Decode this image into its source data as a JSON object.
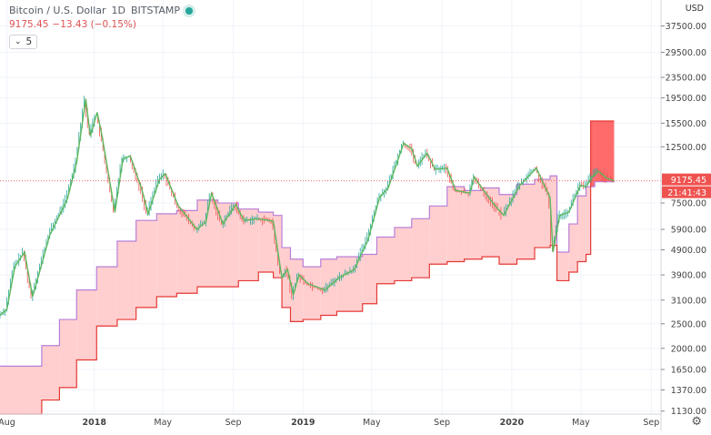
{
  "legend": {
    "title": "Bitcoin / U.S. Dollar",
    "interval": "1D",
    "exchange": "BITSTAMP",
    "last_price": "9175.45",
    "change": "−13.43 (−0.15%)",
    "indicator_label": "5"
  },
  "price_axis": {
    "currency": "USD",
    "ticks": [
      "37500.00",
      "29500.00",
      "23500.00",
      "19500.00",
      "15500.00",
      "12500.00",
      "7500.00",
      "5900.00",
      "4900.00",
      "3900.00",
      "3100.00",
      "2500.00",
      "2000.00",
      "1650.00",
      "1370.00",
      "1130.00"
    ],
    "price_label": "9175.45",
    "countdown_label": "21:41:43"
  },
  "colors": {
    "background": "#ffffff",
    "price_line": "#5cb85c",
    "candle_up": "#26a69a",
    "candle_down": "#ef5350",
    "cloud_bull": "#ffcfcf",
    "cloud_bear": "#ff6b6b",
    "span_a": "#b87fd8",
    "span_b": "#e53935",
    "price_marker": "#ef5350"
  },
  "chart_data": {
    "type": "line",
    "title": "Bitcoin / U.S. Dollar",
    "scale": "log",
    "ylim": [
      1100,
      47500
    ],
    "x_ticks": [
      {
        "t": 1501545600000,
        "label": "Aug",
        "bold": false
      },
      {
        "t": 1514764800000,
        "label": "2018",
        "bold": true
      },
      {
        "t": 1525132800000,
        "label": "May",
        "bold": false
      },
      {
        "t": 1535760000000,
        "label": "Sep",
        "bold": false
      },
      {
        "t": 1546300800000,
        "label": "2019",
        "bold": true
      },
      {
        "t": 1556668800000,
        "label": "May",
        "bold": false
      },
      {
        "t": 1567296000000,
        "label": "Sep",
        "bold": false
      },
      {
        "t": 1577836800000,
        "label": "2020",
        "bold": true
      },
      {
        "t": 1588291200000,
        "label": "May",
        "bold": false
      },
      {
        "t": 1598918400000,
        "label": "Sep",
        "bold": false
      }
    ],
    "series": [
      {
        "name": "price",
        "points": [
          [
            "2017-07-20",
            2700
          ],
          [
            "2017-08-01",
            2850
          ],
          [
            "2017-08-15",
            4200
          ],
          [
            "2017-09-01",
            4800
          ],
          [
            "2017-09-15",
            3200
          ],
          [
            "2017-10-01",
            4300
          ],
          [
            "2017-10-15",
            5600
          ],
          [
            "2017-11-01",
            6700
          ],
          [
            "2017-11-15",
            7800
          ],
          [
            "2017-12-01",
            10800
          ],
          [
            "2017-12-17",
            19300
          ],
          [
            "2017-12-25",
            13800
          ],
          [
            "2018-01-06",
            17100
          ],
          [
            "2018-01-15",
            13600
          ],
          [
            "2018-02-06",
            6900
          ],
          [
            "2018-02-20",
            11200
          ],
          [
            "2018-03-05",
            11500
          ],
          [
            "2018-03-25",
            8500
          ],
          [
            "2018-04-05",
            6800
          ],
          [
            "2018-04-25",
            9300
          ],
          [
            "2018-05-05",
            9800
          ],
          [
            "2018-05-28",
            7300
          ],
          [
            "2018-06-15",
            6500
          ],
          [
            "2018-06-29",
            5900
          ],
          [
            "2018-07-15",
            6300
          ],
          [
            "2018-07-25",
            8200
          ],
          [
            "2018-08-14",
            6200
          ],
          [
            "2018-09-05",
            7400
          ],
          [
            "2018-09-20",
            6400
          ],
          [
            "2018-10-15",
            6500
          ],
          [
            "2018-11-10",
            6350
          ],
          [
            "2018-11-20",
            4500
          ],
          [
            "2018-11-25",
            3800
          ],
          [
            "2018-12-05",
            4100
          ],
          [
            "2018-12-15",
            3250
          ],
          [
            "2018-12-25",
            3900
          ],
          [
            "2019-01-10",
            3600
          ],
          [
            "2019-02-08",
            3400
          ],
          [
            "2019-03-05",
            3800
          ],
          [
            "2019-04-01",
            4100
          ],
          [
            "2019-04-25",
            5400
          ],
          [
            "2019-05-15",
            7900
          ],
          [
            "2019-05-30",
            8600
          ],
          [
            "2019-06-26",
            12900
          ],
          [
            "2019-07-10",
            12300
          ],
          [
            "2019-07-20",
            10500
          ],
          [
            "2019-08-06",
            11800
          ],
          [
            "2019-08-20",
            10200
          ],
          [
            "2019-09-10",
            10300
          ],
          [
            "2019-09-25",
            8400
          ],
          [
            "2019-10-20",
            8200
          ],
          [
            "2019-10-27",
            9500
          ],
          [
            "2019-11-20",
            8000
          ],
          [
            "2019-12-01",
            7400
          ],
          [
            "2019-12-18",
            6700
          ],
          [
            "2020-01-15",
            8800
          ],
          [
            "2020-02-13",
            10300
          ],
          [
            "2020-02-28",
            8700
          ],
          [
            "2020-03-08",
            7900
          ],
          [
            "2020-03-13",
            4800
          ],
          [
            "2020-03-25",
            6700
          ],
          [
            "2020-04-10",
            6900
          ],
          [
            "2020-04-30",
            8800
          ],
          [
            "2020-05-10",
            8700
          ],
          [
            "2020-05-20",
            9500
          ],
          [
            "2020-06-01",
            10000
          ],
          [
            "2020-06-15",
            9400
          ],
          [
            "2020-06-28",
            9175.45
          ]
        ]
      },
      {
        "name": "span_a",
        "points": [
          [
            "2017-07-20",
            1700
          ],
          [
            "2017-09-01",
            1700
          ],
          [
            "2017-10-01",
            2050
          ],
          [
            "2017-11-01",
            2600
          ],
          [
            "2017-12-01",
            3400
          ],
          [
            "2018-01-05",
            4200
          ],
          [
            "2018-02-10",
            5300
          ],
          [
            "2018-03-15",
            6400
          ],
          [
            "2018-04-20",
            6800
          ],
          [
            "2018-05-25",
            7000
          ],
          [
            "2018-06-30",
            7700
          ],
          [
            "2018-08-05",
            7500
          ],
          [
            "2018-09-10",
            7100
          ],
          [
            "2018-10-15",
            6900
          ],
          [
            "2018-11-10",
            6700
          ],
          [
            "2018-11-25",
            5000
          ],
          [
            "2018-12-10",
            4500
          ],
          [
            "2019-01-01",
            4200
          ],
          [
            "2019-02-01",
            4500
          ],
          [
            "2019-03-01",
            4600
          ],
          [
            "2019-04-15",
            4700
          ],
          [
            "2019-05-10",
            5500
          ],
          [
            "2019-06-10",
            6000
          ],
          [
            "2019-07-10",
            6500
          ],
          [
            "2019-08-10",
            7300
          ],
          [
            "2019-09-10",
            8700
          ],
          [
            "2019-10-10",
            8400
          ],
          [
            "2019-11-10",
            8600
          ],
          [
            "2019-12-10",
            8100
          ],
          [
            "2020-01-10",
            8900
          ],
          [
            "2020-02-10",
            9300
          ],
          [
            "2020-03-08",
            9600
          ],
          [
            "2020-03-20",
            4800
          ],
          [
            "2020-04-10",
            6200
          ],
          [
            "2020-04-25",
            8000
          ],
          [
            "2020-05-10",
            8700
          ],
          [
            "2020-05-25",
            9100
          ],
          [
            "2020-06-28",
            9200
          ]
        ]
      },
      {
        "name": "span_b",
        "points": [
          [
            "2017-07-20",
            1100
          ],
          [
            "2017-09-01",
            1100
          ],
          [
            "2017-10-01",
            1250
          ],
          [
            "2017-11-01",
            1400
          ],
          [
            "2017-12-01",
            1800
          ],
          [
            "2018-01-05",
            2450
          ],
          [
            "2018-02-10",
            2600
          ],
          [
            "2018-03-15",
            2900
          ],
          [
            "2018-04-20",
            3200
          ],
          [
            "2018-05-25",
            3300
          ],
          [
            "2018-06-30",
            3500
          ],
          [
            "2018-08-05",
            3500
          ],
          [
            "2018-09-10",
            3700
          ],
          [
            "2018-10-15",
            4000
          ],
          [
            "2018-11-10",
            3800
          ],
          [
            "2018-11-25",
            2900
          ],
          [
            "2018-12-10",
            2550
          ],
          [
            "2019-01-01",
            2600
          ],
          [
            "2019-02-01",
            2700
          ],
          [
            "2019-03-01",
            2800
          ],
          [
            "2019-04-15",
            3000
          ],
          [
            "2019-05-10",
            3600
          ],
          [
            "2019-06-10",
            3700
          ],
          [
            "2019-07-10",
            3800
          ],
          [
            "2019-08-10",
            4300
          ],
          [
            "2019-09-10",
            4400
          ],
          [
            "2019-10-10",
            4500
          ],
          [
            "2019-11-10",
            4600
          ],
          [
            "2019-12-10",
            4300
          ],
          [
            "2020-01-10",
            4500
          ],
          [
            "2020-02-10",
            5000
          ],
          [
            "2020-03-08",
            5100
          ],
          [
            "2020-03-20",
            3700
          ],
          [
            "2020-04-10",
            4000
          ],
          [
            "2020-04-25",
            4400
          ],
          [
            "2020-05-10",
            4700
          ],
          [
            "2020-05-18",
            15800
          ],
          [
            "2020-06-28",
            15800
          ]
        ]
      }
    ]
  }
}
